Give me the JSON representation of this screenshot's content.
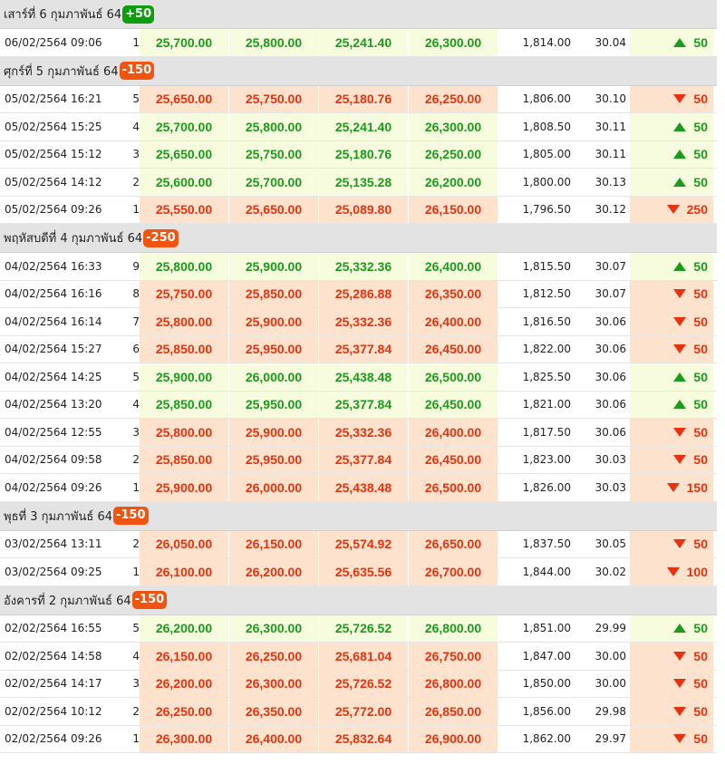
{
  "colors": {
    "up_text": "#1a9b1a",
    "down_text": "#e8320f",
    "up_bg": "#f7fcdf",
    "down_bg": "#fde3cd",
    "badge_up": "#0d9e0d",
    "badge_down": "#f05410",
    "header_bg": "#e3e3e3"
  },
  "days": [
    {
      "title": "เสาร์ที่ 6 กุมภาพันธ์ 64",
      "badge": "+50",
      "dir": "up",
      "rows": [
        {
          "time": "06/02/2564 09:06",
          "seq": "1",
          "prices": [
            "25,700.00",
            "25,800.00",
            "25,241.40",
            "26,300.00"
          ],
          "usd": "1,814.00",
          "rate": "30.04",
          "dir": "up",
          "change": "50"
        }
      ]
    },
    {
      "title": "ศุกร์ที่ 5 กุมภาพันธ์ 64",
      "badge": "-150",
      "dir": "down",
      "rows": [
        {
          "time": "05/02/2564 16:21",
          "seq": "5",
          "prices": [
            "25,650.00",
            "25,750.00",
            "25,180.76",
            "26,250.00"
          ],
          "usd": "1,806.00",
          "rate": "30.10",
          "dir": "down",
          "change": "50"
        },
        {
          "time": "05/02/2564 15:25",
          "seq": "4",
          "prices": [
            "25,700.00",
            "25,800.00",
            "25,241.40",
            "26,300.00"
          ],
          "usd": "1,808.50",
          "rate": "30.11",
          "dir": "up",
          "change": "50"
        },
        {
          "time": "05/02/2564 15:12",
          "seq": "3",
          "prices": [
            "25,650.00",
            "25,750.00",
            "25,180.76",
            "26,250.00"
          ],
          "usd": "1,805.00",
          "rate": "30.11",
          "dir": "up",
          "change": "50"
        },
        {
          "time": "05/02/2564 14:12",
          "seq": "2",
          "prices": [
            "25,600.00",
            "25,700.00",
            "25,135.28",
            "26,200.00"
          ],
          "usd": "1,800.00",
          "rate": "30.13",
          "dir": "up",
          "change": "50"
        },
        {
          "time": "05/02/2564 09:26",
          "seq": "1",
          "prices": [
            "25,550.00",
            "25,650.00",
            "25,089.80",
            "26,150.00"
          ],
          "usd": "1,796.50",
          "rate": "30.12",
          "dir": "down",
          "change": "250"
        }
      ]
    },
    {
      "title": "พฤหัสบดีที่ 4 กุมภาพันธ์ 64",
      "badge": "-250",
      "dir": "down",
      "rows": [
        {
          "time": "04/02/2564 16:33",
          "seq": "9",
          "prices": [
            "25,800.00",
            "25,900.00",
            "25,332.36",
            "26,400.00"
          ],
          "usd": "1,815.50",
          "rate": "30.07",
          "dir": "up",
          "change": "50"
        },
        {
          "time": "04/02/2564 16:16",
          "seq": "8",
          "prices": [
            "25,750.00",
            "25,850.00",
            "25,286.88",
            "26,350.00"
          ],
          "usd": "1,812.50",
          "rate": "30.07",
          "dir": "down",
          "change": "50"
        },
        {
          "time": "04/02/2564 16:14",
          "seq": "7",
          "prices": [
            "25,800.00",
            "25,900.00",
            "25,332.36",
            "26,400.00"
          ],
          "usd": "1,816.50",
          "rate": "30.06",
          "dir": "down",
          "change": "50"
        },
        {
          "time": "04/02/2564 15:27",
          "seq": "6",
          "prices": [
            "25,850.00",
            "25,950.00",
            "25,377.84",
            "26,450.00"
          ],
          "usd": "1,822.00",
          "rate": "30.06",
          "dir": "down",
          "change": "50"
        },
        {
          "time": "04/02/2564 14:25",
          "seq": "5",
          "prices": [
            "25,900.00",
            "26,000.00",
            "25,438.48",
            "26,500.00"
          ],
          "usd": "1,825.50",
          "rate": "30.06",
          "dir": "up",
          "change": "50"
        },
        {
          "time": "04/02/2564 13:20",
          "seq": "4",
          "prices": [
            "25,850.00",
            "25,950.00",
            "25,377.84",
            "26,450.00"
          ],
          "usd": "1,821.00",
          "rate": "30.06",
          "dir": "up",
          "change": "50"
        },
        {
          "time": "04/02/2564 12:55",
          "seq": "3",
          "prices": [
            "25,800.00",
            "25,900.00",
            "25,332.36",
            "26,400.00"
          ],
          "usd": "1,817.50",
          "rate": "30.06",
          "dir": "down",
          "change": "50"
        },
        {
          "time": "04/02/2564 09:58",
          "seq": "2",
          "prices": [
            "25,850.00",
            "25,950.00",
            "25,377.84",
            "26,450.00"
          ],
          "usd": "1,823.00",
          "rate": "30.03",
          "dir": "down",
          "change": "50"
        },
        {
          "time": "04/02/2564 09:26",
          "seq": "1",
          "prices": [
            "25,900.00",
            "26,000.00",
            "25,438.48",
            "26,500.00"
          ],
          "usd": "1,826.00",
          "rate": "30.03",
          "dir": "down",
          "change": "150"
        }
      ]
    },
    {
      "title": "พุธที่ 3 กุมภาพันธ์ 64",
      "badge": "-150",
      "dir": "down",
      "rows": [
        {
          "time": "03/02/2564 13:11",
          "seq": "2",
          "prices": [
            "26,050.00",
            "26,150.00",
            "25,574.92",
            "26,650.00"
          ],
          "usd": "1,837.50",
          "rate": "30.05",
          "dir": "down",
          "change": "50"
        },
        {
          "time": "03/02/2564 09:25",
          "seq": "1",
          "prices": [
            "26,100.00",
            "26,200.00",
            "25,635.56",
            "26,700.00"
          ],
          "usd": "1,844.00",
          "rate": "30.02",
          "dir": "down",
          "change": "100"
        }
      ]
    },
    {
      "title": "อังคารที่ 2 กุมภาพันธ์ 64",
      "badge": "-150",
      "dir": "down",
      "rows": [
        {
          "time": "02/02/2564 16:55",
          "seq": "5",
          "prices": [
            "26,200.00",
            "26,300.00",
            "25,726.52",
            "26,800.00"
          ],
          "usd": "1,851.00",
          "rate": "29.99",
          "dir": "up",
          "change": "50"
        },
        {
          "time": "02/02/2564 14:58",
          "seq": "4",
          "prices": [
            "26,150.00",
            "26,250.00",
            "25,681.04",
            "26,750.00"
          ],
          "usd": "1,847.00",
          "rate": "30.00",
          "dir": "down",
          "change": "50"
        },
        {
          "time": "02/02/2564 14:17",
          "seq": "3",
          "prices": [
            "26,200.00",
            "26,300.00",
            "25,726.52",
            "26,800.00"
          ],
          "usd": "1,850.00",
          "rate": "30.00",
          "dir": "down",
          "change": "50"
        },
        {
          "time": "02/02/2564 10:12",
          "seq": "2",
          "prices": [
            "26,250.00",
            "26,350.00",
            "25,772.00",
            "26,850.00"
          ],
          "usd": "1,856.00",
          "rate": "29.98",
          "dir": "down",
          "change": "50"
        },
        {
          "time": "02/02/2564 09:26",
          "seq": "1",
          "prices": [
            "26,300.00",
            "26,400.00",
            "25,832.64",
            "26,900.00"
          ],
          "usd": "1,862.00",
          "rate": "29.97",
          "dir": "down",
          "change": "50"
        }
      ]
    }
  ]
}
